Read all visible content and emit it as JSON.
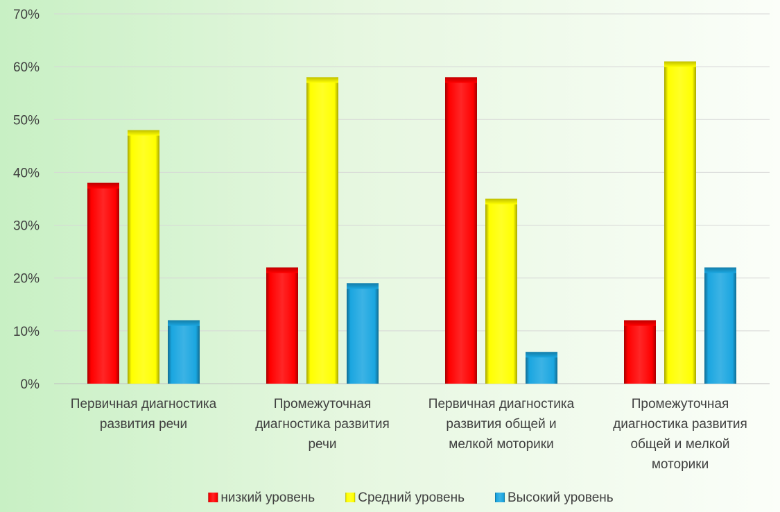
{
  "chart_data": {
    "type": "bar",
    "title": "",
    "xlabel": "",
    "ylabel": "",
    "ylim": [
      0,
      70
    ],
    "y_ticks": [
      0,
      10,
      20,
      30,
      40,
      50,
      60,
      70
    ],
    "y_tick_suffix": "%",
    "grid": true,
    "legend_position": "bottom",
    "categories": [
      "Первичная диагностика развития речи",
      "Промежуточная диагностика развития речи",
      "Первичная диагностика развития общей и мелкой моторики",
      "Промежуточная диагностика развития общей и мелкой моторики"
    ],
    "category_label_lines": [
      [
        "Первичная диагностика",
        "развития речи"
      ],
      [
        "Промежуточная",
        "диагностика развития",
        "речи"
      ],
      [
        "Первичная диагностика",
        "развития общей и",
        "мелкой моторики"
      ],
      [
        "Промежуточная",
        "диагностика развития",
        "общей и мелкой",
        "моторики"
      ]
    ],
    "series": [
      {
        "name": "низкий уровень",
        "color": "#ff0000",
        "values": [
          38,
          22,
          58,
          12
        ]
      },
      {
        "name": "Средний уровень",
        "color": "#ffff00",
        "values": [
          48,
          58,
          35,
          61
        ]
      },
      {
        "name": "Высокий уровень",
        "color": "#1aa6e0",
        "values": [
          12,
          19,
          6,
          22
        ]
      }
    ]
  }
}
